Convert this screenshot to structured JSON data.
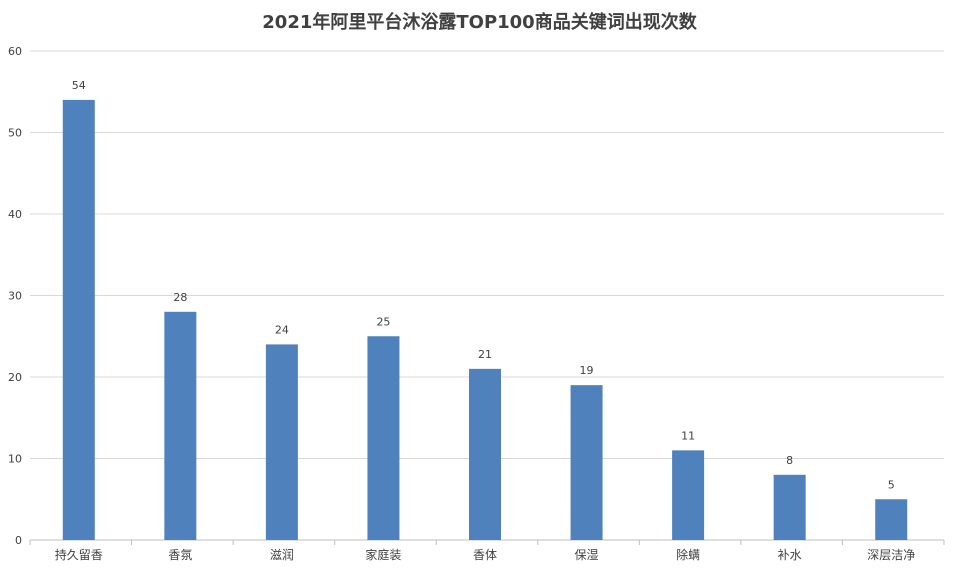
{
  "chart_data": {
    "type": "bar",
    "title": "2021年阿里平台沐浴露TOP100商品关键词出现次数",
    "categories": [
      "持久留香",
      "香氛",
      "滋润",
      "家庭装",
      "香体",
      "保湿",
      "除螨",
      "补水",
      "深层洁净"
    ],
    "series": [
      {
        "values": [
          54,
          28,
          24,
          25,
          21,
          19,
          11,
          8,
          5
        ]
      }
    ],
    "ylim": [
      0,
      60
    ],
    "yticks": [
      0,
      10,
      20,
      30,
      40,
      50,
      60
    ],
    "grid": true,
    "data_labels": true,
    "bar_color": "#4F81BD",
    "grid_color": "#D9D9D9",
    "axis_color": "#BFBFBF",
    "text_color": "#404040"
  }
}
